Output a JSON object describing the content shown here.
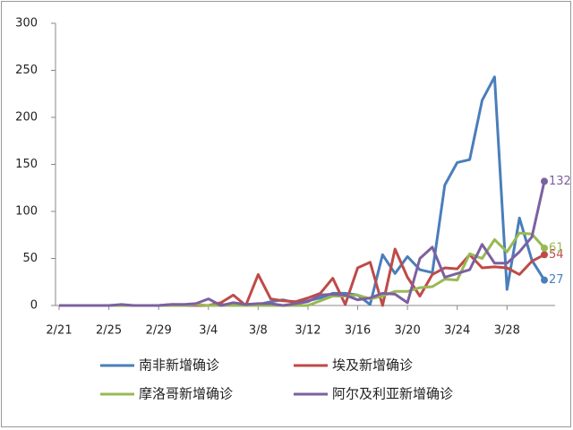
{
  "chart_data": {
    "type": "line",
    "categories": [
      "2/21",
      null,
      null,
      null,
      "2/25",
      null,
      null,
      null,
      "2/29",
      null,
      null,
      null,
      "3/4",
      null,
      null,
      null,
      "3/8",
      null,
      null,
      null,
      "3/12",
      null,
      null,
      null,
      "3/16",
      null,
      null,
      null,
      "3/20",
      null,
      null,
      null,
      "3/24",
      null,
      null,
      null,
      "3/28",
      null,
      null,
      null
    ],
    "series": [
      {
        "name": "南非新增确诊",
        "color": "#4a7ebb",
        "values": [
          0,
          0,
          0,
          0,
          0,
          0,
          0,
          0,
          0,
          0,
          0,
          0,
          0,
          1,
          0,
          1,
          1,
          4,
          6,
          3,
          5,
          8,
          13,
          13,
          11,
          1,
          54,
          34,
          52,
          38,
          35,
          128,
          152,
          155,
          218,
          243,
          17,
          93,
          48,
          27
        ]
      },
      {
        "name": "埃及新增确诊",
        "color": "#be4b48",
        "values": [
          0,
          0,
          0,
          0,
          0,
          0,
          0,
          0,
          0,
          1,
          1,
          0,
          0,
          3,
          11,
          0,
          33,
          7,
          5,
          4,
          8,
          13,
          29,
          1,
          40,
          46,
          0,
          60,
          30,
          10,
          33,
          40,
          39,
          54,
          40,
          41,
          40,
          33,
          47,
          54
        ]
      },
      {
        "name": "摩洛哥新增确诊",
        "color": "#98b954",
        "values": [
          0,
          0,
          0,
          0,
          0,
          0,
          0,
          0,
          0,
          0,
          0,
          1,
          0,
          0,
          0,
          0,
          0,
          0,
          0,
          0,
          0,
          5,
          10,
          10,
          11,
          7,
          10,
          15,
          15,
          19,
          20,
          28,
          27,
          55,
          50,
          70,
          57,
          77,
          76,
          61
        ]
      },
      {
        "name": "阿尔及利亚新增确诊",
        "color": "#7d60a0",
        "values": [
          0,
          0,
          0,
          0,
          0,
          1,
          0,
          0,
          0,
          1,
          1,
          2,
          7,
          0,
          3,
          1,
          2,
          2,
          0,
          2,
          4,
          11,
          12,
          11,
          6,
          8,
          13,
          12,
          3,
          50,
          62,
          30,
          34,
          38,
          65,
          45,
          45,
          57,
          73,
          132
        ]
      }
    ],
    "ylim": [
      0,
      300
    ],
    "yticks": [
      0,
      50,
      100,
      150,
      200,
      250,
      300
    ],
    "label_last": true,
    "grid": false
  }
}
